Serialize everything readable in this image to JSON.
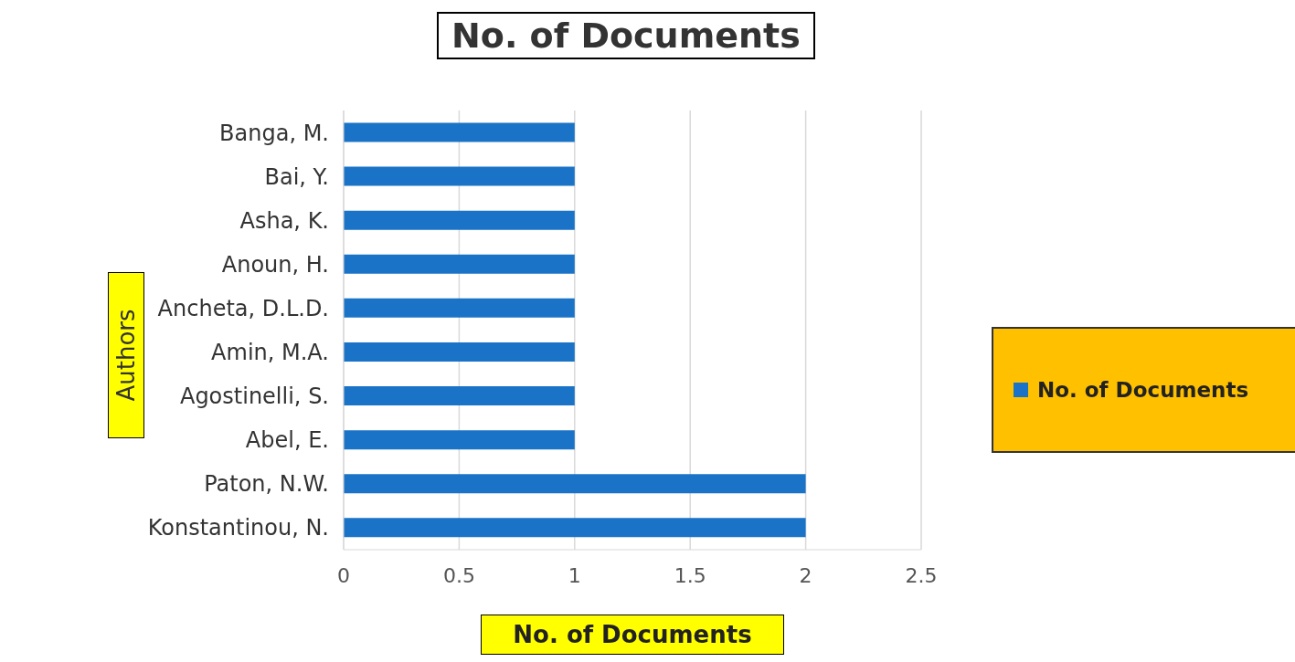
{
  "chart_data": {
    "type": "bar",
    "orientation": "horizontal",
    "title": "No. of Documents",
    "xlabel": "No. of Documents",
    "ylabel": "Authors",
    "categories": [
      "Banga, M.",
      "Bai, Y.",
      "Asha, K.",
      "Anoun, H.",
      "Ancheta, D.L.D.",
      "Amin, M.A.",
      "Agostinelli, S.",
      "Abel, E.",
      "Paton, N.W.",
      "Konstantinou, N."
    ],
    "series": [
      {
        "name": "No. of Documents",
        "color": "#1a73c6",
        "values": [
          1,
          1,
          1,
          1,
          1,
          1,
          1,
          1,
          2,
          2
        ]
      }
    ],
    "xlim": [
      0,
      2.5
    ],
    "xticks": [
      0,
      0.5,
      1,
      1.5,
      2,
      2.5
    ],
    "grid": "x",
    "legend": "right"
  }
}
